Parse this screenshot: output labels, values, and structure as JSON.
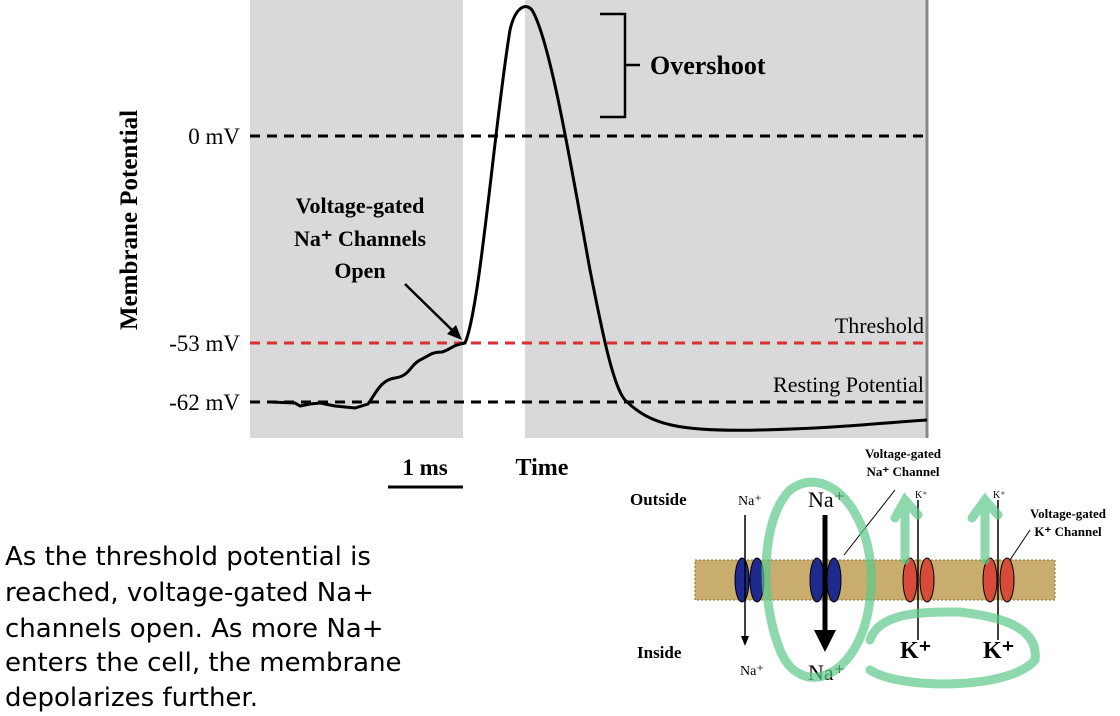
{
  "graph": {
    "y_axis_label": "Membrane Potential",
    "x_axis_label": "Time",
    "scale_label": "1 ms",
    "levels": [
      "0 mV",
      "-53 mV",
      "-62 mV"
    ],
    "threshold_label": "Threshold",
    "resting_label": "Resting Potential",
    "overshoot_label": "Overshoot",
    "annotation": [
      "Voltage-gated",
      "Na⁺ Channels",
      "Open"
    ]
  },
  "caption": [
    "As the threshold potential is",
    "reached, voltage-gated Na+",
    "channels open.  As more Na+",
    "enters the cell, the membrane",
    "depolarizes further."
  ],
  "diagram": {
    "outside": "Outside",
    "inside": "Inside",
    "na_out_small": "Na⁺",
    "na_out_big": "Na⁺",
    "k_out_1": "K⁺",
    "k_out_2": "K⁺",
    "na_in_small": "Na⁺",
    "na_in_big": "Na⁺",
    "k_in_1": "K⁺",
    "k_in_2": "K⁺",
    "na_channel_label": [
      "Voltage-gated",
      "Na⁺ Channel"
    ],
    "k_channel_label": [
      "Voltage-gated",
      "K⁺ Channel"
    ]
  }
}
